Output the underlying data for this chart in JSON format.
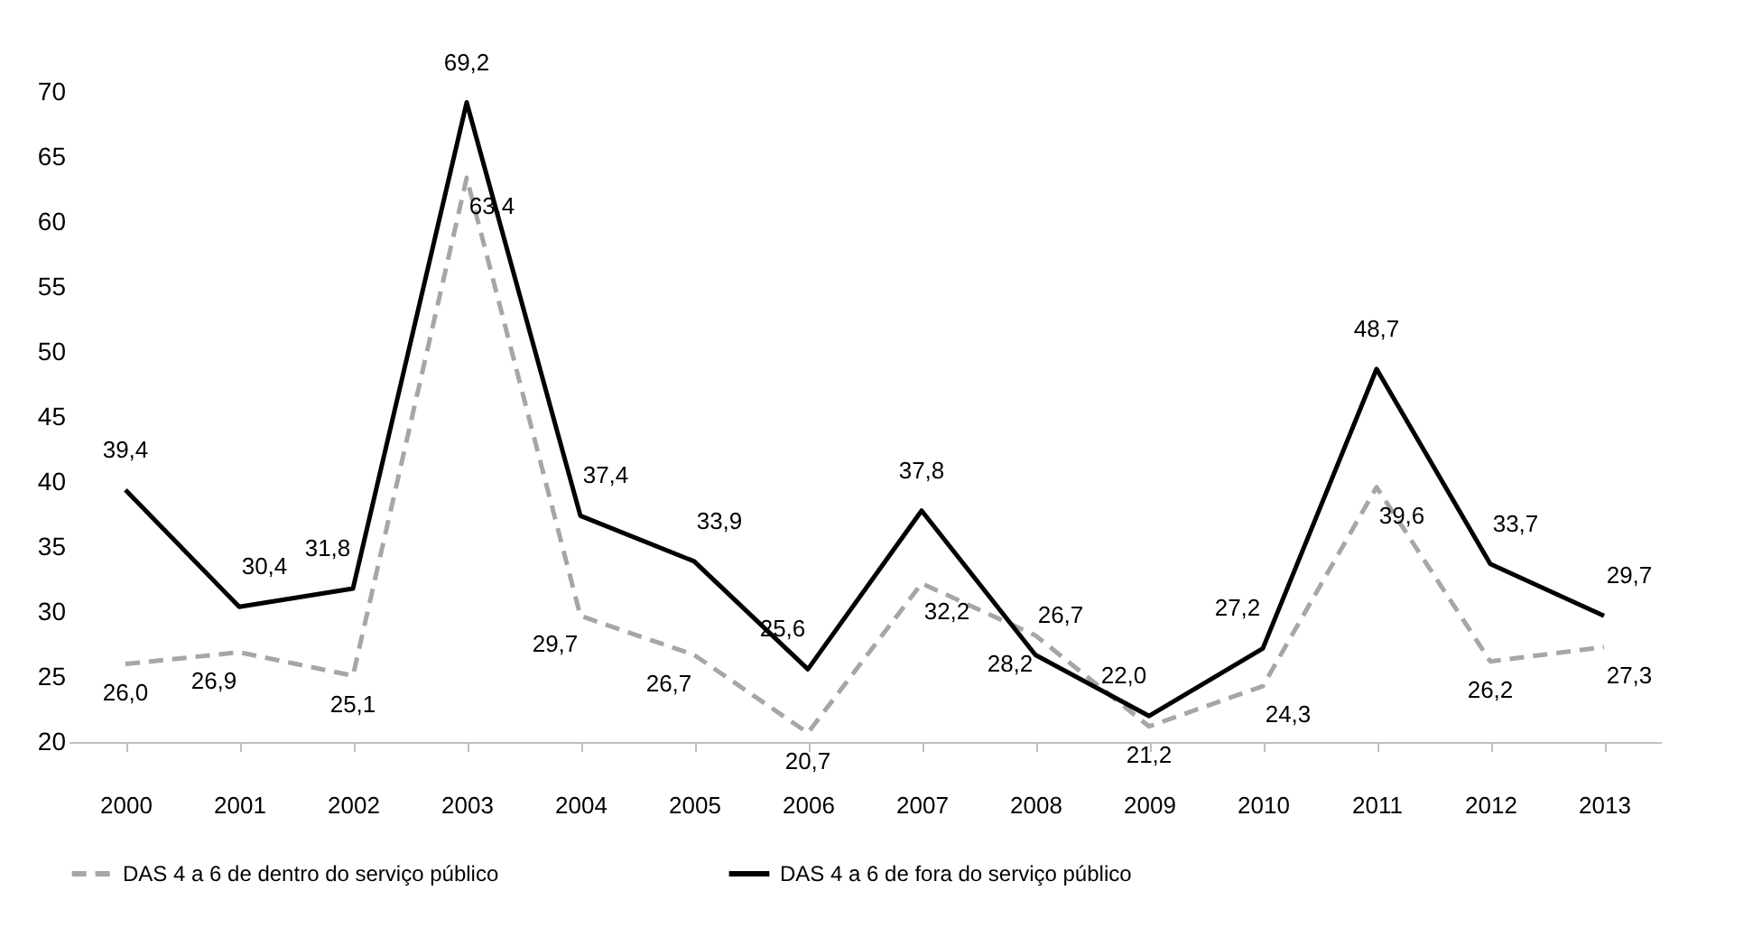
{
  "chart_data": {
    "type": "line",
    "categories": [
      "2000",
      "2001",
      "2002",
      "2003",
      "2004",
      "2005",
      "2006",
      "2007",
      "2008",
      "2009",
      "2010",
      "2011",
      "2012",
      "2013"
    ],
    "series": [
      {
        "name": "DAS 4 a 6 de dentro do serviço público",
        "color": "#a6a6a6",
        "line_style": "dashed",
        "values": [
          26.0,
          26.9,
          25.1,
          63.4,
          29.7,
          26.7,
          20.7,
          32.2,
          28.2,
          21.2,
          24.3,
          39.6,
          26.2,
          27.3
        ],
        "value_labels": [
          "26,0",
          "26,9",
          "25,1",
          "63,4",
          "29,7",
          "26,7",
          "20,7",
          "32,2",
          "28,2",
          "21,2",
          "24,3",
          "39,6",
          "26,2",
          "27,3"
        ]
      },
      {
        "name": "DAS 4 a 6 de fora do serviço público",
        "color": "#000000",
        "line_style": "solid",
        "values": [
          39.4,
          30.4,
          31.8,
          69.2,
          37.4,
          33.9,
          25.6,
          37.8,
          26.7,
          22.0,
          27.2,
          48.7,
          33.7,
          29.7
        ],
        "value_labels": [
          "39,4",
          "30,4",
          "31,8",
          "69,2",
          "37,4",
          "33,9",
          "25,6",
          "37,8",
          "26,7",
          "22,0",
          "27,2",
          "48,7",
          "33,7",
          "29,7"
        ]
      }
    ],
    "ylim": [
      20,
      70
    ],
    "yticks": [
      20,
      25,
      30,
      35,
      40,
      45,
      50,
      55,
      60,
      65,
      70
    ],
    "grid": false,
    "legend": "bottom",
    "marker": "none"
  }
}
